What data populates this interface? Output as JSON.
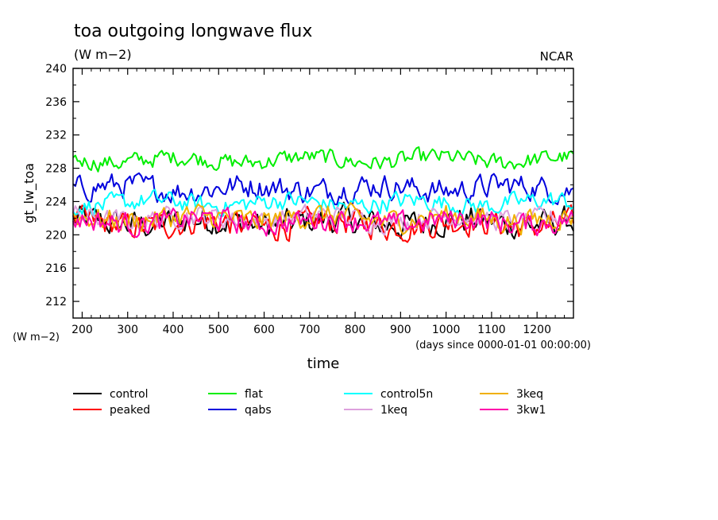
{
  "chart_data": {
    "type": "line",
    "title": "toa outgoing longwave flux",
    "subtitle": "(W m−2)",
    "credit": "NCAR",
    "ylabel": "gt_lw_toa",
    "yunits": "(W m−2)",
    "xlabel": "time",
    "xunits": "(days since 0000-01-01 00:00:00)",
    "xlim": [
      180,
      1280
    ],
    "ylim": [
      210,
      240
    ],
    "xticks": [
      200,
      300,
      400,
      500,
      600,
      700,
      800,
      900,
      1000,
      1100,
      1200
    ],
    "yticks": [
      212,
      216,
      220,
      224,
      228,
      232,
      236,
      240
    ],
    "x_sample": {
      "start": 180,
      "end": 1280,
      "step": 5
    },
    "legend_position": "bottom",
    "series": [
      {
        "name": "control",
        "color": "#000000",
        "mean": 221.5,
        "noise_amplitude": 1.5
      },
      {
        "name": "peaked",
        "color": "#ff0000",
        "mean": 221.3,
        "noise_amplitude": 1.4
      },
      {
        "name": "flat",
        "color": "#00ee00",
        "mean": 229.0,
        "noise_amplitude": 0.9
      },
      {
        "name": "qabs",
        "color": "#0000dd",
        "mean": 225.6,
        "noise_amplitude": 1.3
      },
      {
        "name": "control5n",
        "color": "#00ffff",
        "mean": 223.8,
        "noise_amplitude": 1.0
      },
      {
        "name": "1keq",
        "color": "#dda0dd",
        "mean": 222.0,
        "noise_amplitude": 1.1
      },
      {
        "name": "3keq",
        "color": "#f0b000",
        "mean": 222.0,
        "noise_amplitude": 1.2
      },
      {
        "name": "3kw1",
        "color": "#ff00aa",
        "mean": 221.6,
        "noise_amplitude": 1.2
      }
    ]
  }
}
